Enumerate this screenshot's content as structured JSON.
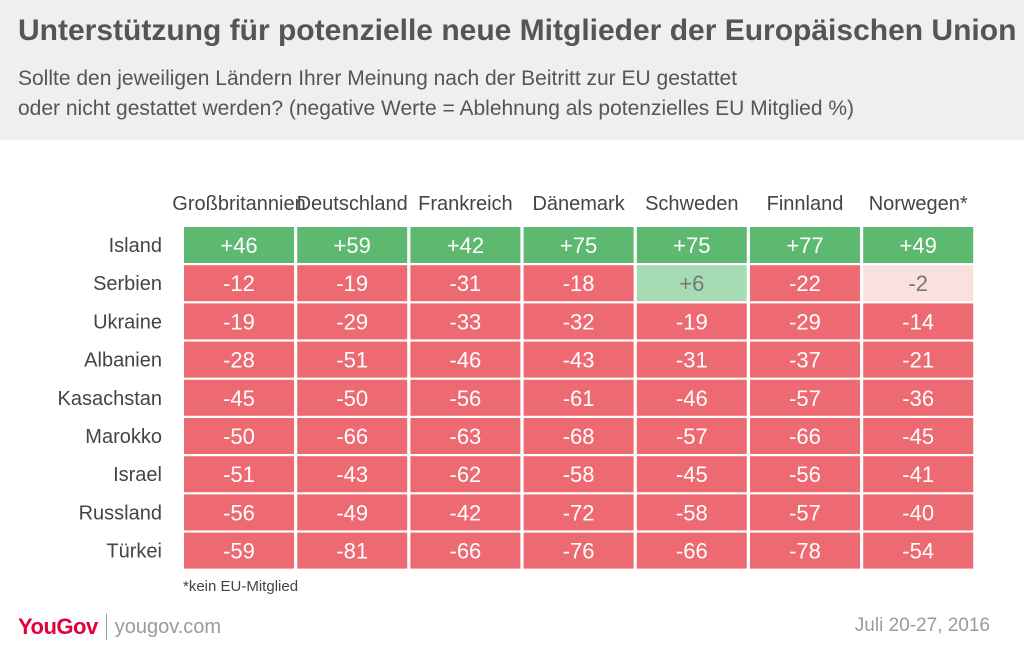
{
  "title": "Unterstützung für potenzielle neue Mitglieder der Europäischen Union",
  "subtitle_line1": "Sollte den jeweiligen Ländern Ihrer Meinung nach der Beitritt zur EU gestattet",
  "subtitle_line2": "oder nicht gestattet werden? (negative Werte = Ablehnung als potenzielles EU Mitglied %)",
  "footnote": "*kein EU-Mitglied",
  "brand": {
    "logo": "YouGov",
    "url": "yougov.com",
    "date": "Juli 20-27, 2016"
  },
  "colors": {
    "strong_positive": "#5cb96f",
    "weak_positive": "#a6dbb3",
    "weak_negative": "#fbe0e0",
    "strong_negative": "#ee6a72",
    "text_on_strong": "#ffffff",
    "text_on_weak": "#777777",
    "brand": "#e4003b"
  },
  "chart_data": {
    "type": "table",
    "columns": [
      "Großbritannien",
      "Deutschland",
      "Frankreich",
      "Dänemark",
      "Schweden",
      "Finnland",
      "Norwegen*"
    ],
    "rows": [
      "Island",
      "Serbien",
      "Ukraine",
      "Albanien",
      "Kasachstan",
      "Marokko",
      "Israel",
      "Russland",
      "Türkei"
    ],
    "values": [
      [
        46,
        59,
        42,
        75,
        75,
        77,
        49
      ],
      [
        -12,
        -19,
        -31,
        -18,
        6,
        -22,
        -2
      ],
      [
        -19,
        -29,
        -33,
        -32,
        -19,
        -29,
        -14
      ],
      [
        -28,
        -51,
        -46,
        -43,
        -31,
        -37,
        -21
      ],
      [
        -45,
        -50,
        -56,
        -61,
        -46,
        -57,
        -36
      ],
      [
        -50,
        -66,
        -63,
        -68,
        -57,
        -66,
        -45
      ],
      [
        -51,
        -43,
        -62,
        -58,
        -45,
        -56,
        -41
      ],
      [
        -56,
        -49,
        -42,
        -72,
        -58,
        -57,
        -40
      ],
      [
        -59,
        -81,
        -66,
        -76,
        -66,
        -78,
        -54
      ]
    ]
  }
}
